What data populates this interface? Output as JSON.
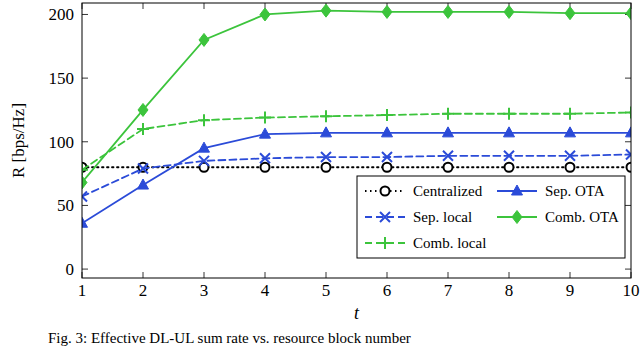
{
  "chart_data": {
    "type": "line",
    "caption": "Fig. 3: Effective DL-UL sum rate vs. resource block number",
    "x_label": "t",
    "y_label": "R [bps/Hz]",
    "x": [
      1,
      2,
      3,
      4,
      5,
      6,
      7,
      8,
      9,
      10
    ],
    "xlim": [
      1,
      10
    ],
    "xticks": [
      1,
      2,
      3,
      4,
      5,
      6,
      7,
      8,
      9,
      10
    ],
    "ylim": [
      -7,
      209
    ],
    "yticks": [
      0,
      50,
      100,
      150,
      200
    ],
    "grid": false,
    "legend": "lower right",
    "series": [
      {
        "name": "Centralized",
        "color": "#000000",
        "marker": "circle",
        "line_style": "dotted",
        "values": [
          80,
          80,
          80,
          80,
          80,
          80,
          80,
          80,
          80,
          80
        ]
      },
      {
        "name": "Sep. OTA",
        "color": "#2b4bd8",
        "marker": "triangle",
        "line_style": "solid",
        "values": [
          36,
          66,
          95,
          106,
          107,
          107,
          107,
          107,
          107,
          107
        ]
      },
      {
        "name": "Sep. local",
        "color": "#2b4bd8",
        "marker": "x",
        "line_style": "dashed",
        "values": [
          57,
          79,
          85,
          87,
          88,
          88,
          89,
          89,
          89,
          90
        ]
      },
      {
        "name": "Comb. OTA",
        "color": "#3cc43c",
        "marker": "diamond",
        "line_style": "solid",
        "values": [
          68,
          125,
          180,
          200,
          203,
          202,
          202,
          202,
          201,
          201
        ]
      },
      {
        "name": "Comb. local",
        "color": "#3cc43c",
        "marker": "plus",
        "line_style": "dashed",
        "values": [
          78,
          110,
          117,
          119,
          120,
          121,
          122,
          122,
          122,
          123
        ]
      }
    ]
  }
}
